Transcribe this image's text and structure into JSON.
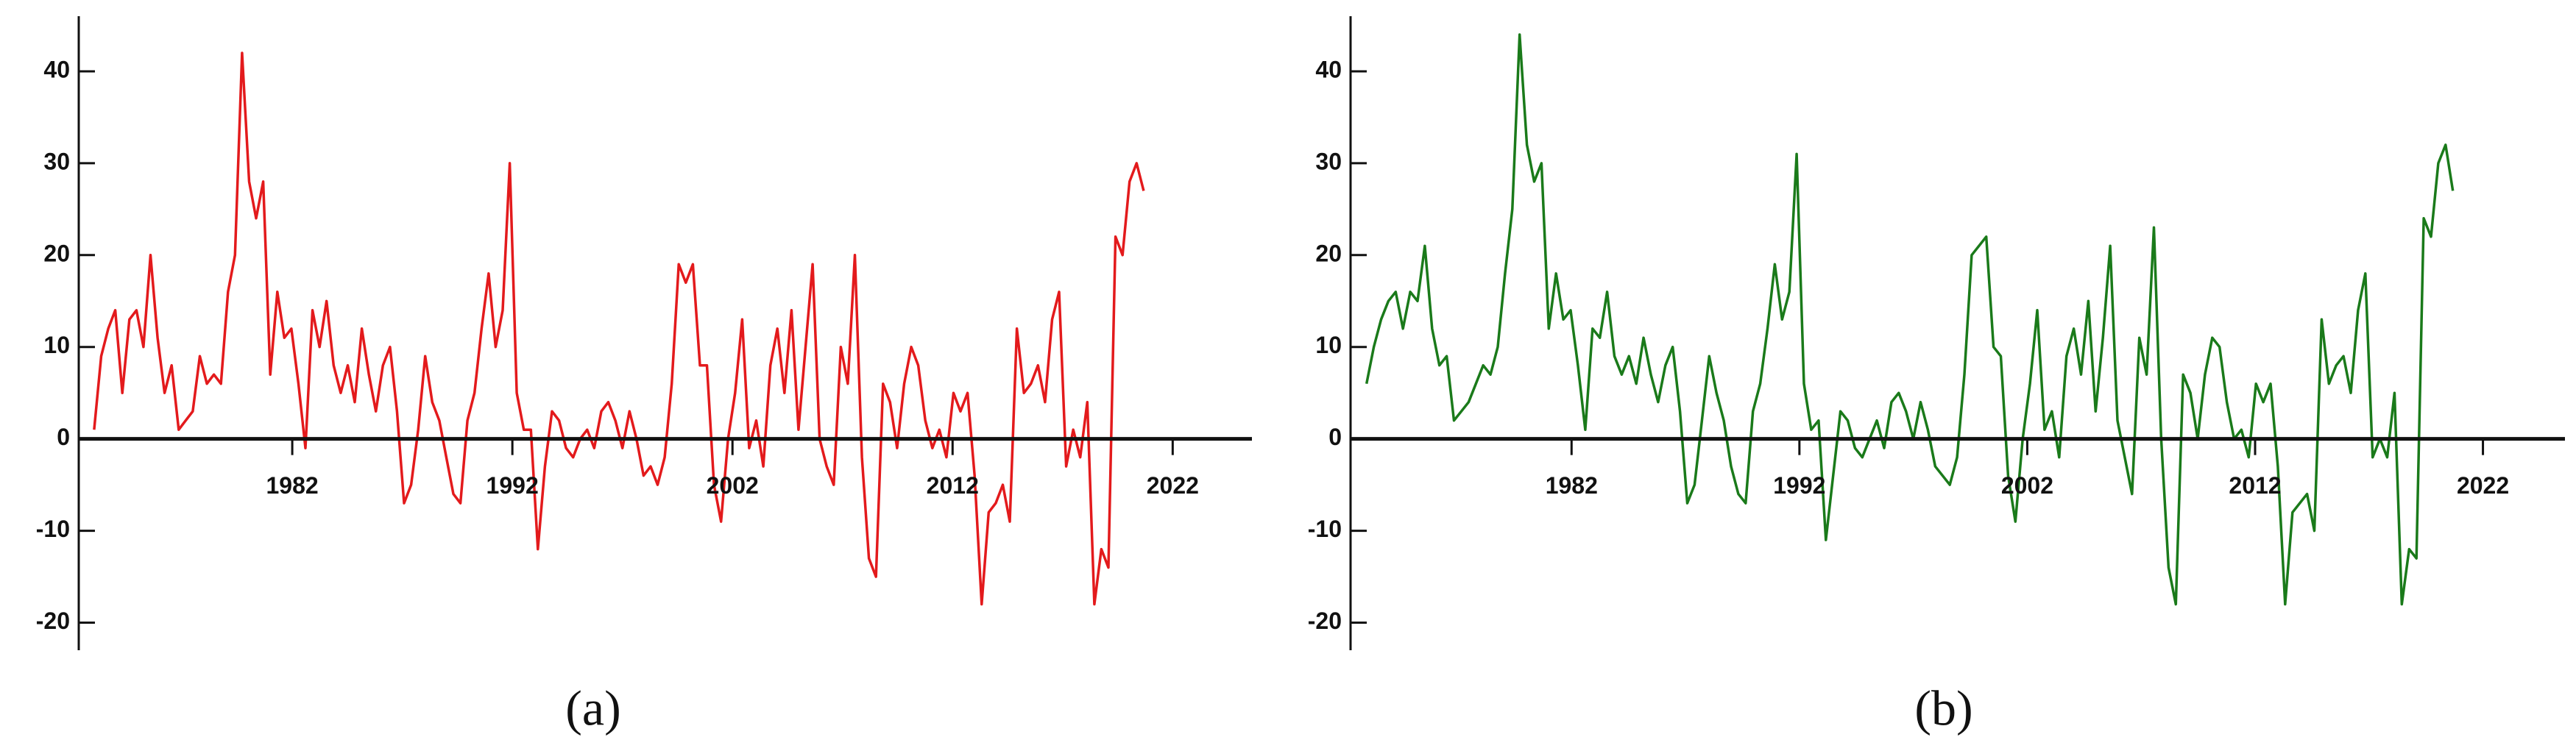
{
  "chart_data": [
    {
      "type": "line",
      "caption": "(a)",
      "color": "#e31a1c",
      "xlim": [
        1972.3,
        2025.6
      ],
      "xticks": [
        1982,
        1992,
        2002,
        2012,
        2022
      ],
      "ylim": [
        -23,
        46
      ],
      "yticks": [
        -20,
        -10,
        0,
        10,
        20,
        30,
        40
      ],
      "x": [
        1973,
        1973.32,
        1973.64,
        1973.96,
        1974.28,
        1974.6,
        1974.92,
        1975.24,
        1975.56,
        1975.88,
        1976.2,
        1976.52,
        1976.84,
        1977.16,
        1977.48,
        1977.8,
        1978.12,
        1978.44,
        1978.76,
        1979.08,
        1979.4,
        1979.72,
        1980.04,
        1980.36,
        1980.68,
        1981,
        1981.32,
        1981.64,
        1981.96,
        1982.28,
        1982.6,
        1982.92,
        1983.24,
        1983.56,
        1983.88,
        1984.2,
        1984.52,
        1984.84,
        1985.16,
        1985.48,
        1985.8,
        1986.12,
        1986.44,
        1986.76,
        1987.08,
        1987.4,
        1987.72,
        1988.04,
        1988.36,
        1988.68,
        1989,
        1989.32,
        1989.64,
        1989.96,
        1990.28,
        1990.6,
        1990.92,
        1991.24,
        1991.56,
        1991.88,
        1992.2,
        1992.52,
        1992.84,
        1993.16,
        1993.48,
        1993.8,
        1994.12,
        1994.44,
        1994.76,
        1995.08,
        1995.4,
        1995.72,
        1996.04,
        1996.36,
        1996.68,
        1997,
        1997.32,
        1997.64,
        1997.96,
        1998.28,
        1998.6,
        1998.92,
        1999.24,
        1999.56,
        1999.88,
        2000.2,
        2000.52,
        2000.84,
        2001.16,
        2001.48,
        2001.8,
        2002.12,
        2002.44,
        2002.76,
        2003.08,
        2003.4,
        2003.72,
        2004.04,
        2004.36,
        2004.68,
        2005,
        2005.32,
        2005.64,
        2005.96,
        2006.28,
        2006.6,
        2006.92,
        2007.24,
        2007.56,
        2007.88,
        2008.2,
        2008.52,
        2008.84,
        2009.16,
        2009.48,
        2009.8,
        2010.12,
        2010.44,
        2010.76,
        2011.08,
        2011.4,
        2011.72,
        2012.04,
        2012.36,
        2012.68,
        2013,
        2013.32,
        2013.64,
        2013.96,
        2014.28,
        2014.6,
        2014.92,
        2015.24,
        2015.56,
        2015.88,
        2016.2,
        2016.52,
        2016.84,
        2017.16,
        2017.48,
        2017.8,
        2018.12,
        2018.44,
        2018.76,
        2019.08,
        2019.4,
        2019.72,
        2020.04,
        2020.36,
        2020.68
      ],
      "values": [
        1,
        9,
        12,
        14,
        5,
        13,
        14,
        10,
        20,
        11,
        5,
        8,
        1,
        2,
        3,
        9,
        6,
        7,
        6,
        16,
        20,
        42,
        28,
        24,
        28,
        7,
        16,
        11,
        12,
        6,
        -1,
        14,
        10,
        15,
        8,
        5,
        8,
        4,
        12,
        7,
        3,
        8,
        10,
        3,
        -7,
        -5,
        1,
        9,
        4,
        2,
        -2,
        -6,
        -7,
        2,
        5,
        12,
        18,
        10,
        14,
        30,
        5,
        1,
        1,
        -12,
        -3,
        3,
        2,
        -1,
        -2,
        0,
        1,
        -1,
        3,
        4,
        2,
        -1,
        3,
        0,
        -4,
        -3,
        -5,
        -2,
        6,
        19,
        17,
        19,
        8,
        8,
        -5,
        -9,
        0,
        5,
        13,
        -1,
        2,
        -3,
        8,
        12,
        5,
        14,
        1,
        10,
        19,
        0,
        -3,
        -5,
        10,
        6,
        20,
        -2,
        -13,
        -15,
        6,
        4,
        -1,
        6,
        10,
        8,
        2,
        -1,
        1,
        -2,
        5,
        3,
        5,
        -4,
        -18,
        -8,
        -7,
        -5,
        -9,
        12,
        5,
        6,
        8,
        4,
        13,
        16,
        -3,
        1,
        -2,
        4,
        -18,
        -12,
        -14,
        22,
        20,
        28,
        30,
        27
      ]
    },
    {
      "type": "line",
      "caption": "(b)",
      "color": "#1a7a1a",
      "xlim": [
        1972.3,
        2025.6
      ],
      "xticks": [
        1982,
        1992,
        2002,
        2012,
        2022
      ],
      "ylim": [
        -23,
        46
      ],
      "yticks": [
        -20,
        -10,
        0,
        10,
        20,
        30,
        40
      ],
      "x": [
        1973,
        1973.32,
        1973.64,
        1973.96,
        1974.28,
        1974.6,
        1974.92,
        1975.24,
        1975.56,
        1975.88,
        1976.2,
        1976.52,
        1976.84,
        1977.16,
        1977.48,
        1977.8,
        1978.12,
        1978.44,
        1978.76,
        1979.08,
        1979.4,
        1979.72,
        1980.04,
        1980.36,
        1980.68,
        1981,
        1981.32,
        1981.64,
        1981.96,
        1982.28,
        1982.6,
        1982.92,
        1983.24,
        1983.56,
        1983.88,
        1984.2,
        1984.52,
        1984.84,
        1985.16,
        1985.48,
        1985.8,
        1986.12,
        1986.44,
        1986.76,
        1987.08,
        1987.4,
        1987.72,
        1988.04,
        1988.36,
        1988.68,
        1989,
        1989.32,
        1989.64,
        1989.96,
        1990.28,
        1990.6,
        1990.92,
        1991.24,
        1991.56,
        1991.88,
        1992.2,
        1992.52,
        1992.84,
        1993.16,
        1993.48,
        1993.8,
        1994.12,
        1994.44,
        1994.76,
        1995.08,
        1995.4,
        1995.72,
        1996.04,
        1996.36,
        1996.68,
        1997,
        1997.32,
        1997.64,
        1997.96,
        1998.28,
        1998.6,
        1998.92,
        1999.24,
        1999.56,
        1999.88,
        2000.2,
        2000.52,
        2000.84,
        2001.16,
        2001.48,
        2001.8,
        2002.12,
        2002.44,
        2002.76,
        2003.08,
        2003.4,
        2003.72,
        2004.04,
        2004.36,
        2004.68,
        2005,
        2005.32,
        2005.64,
        2005.96,
        2006.28,
        2006.6,
        2006.92,
        2007.24,
        2007.56,
        2007.88,
        2008.2,
        2008.52,
        2008.84,
        2009.16,
        2009.48,
        2009.8,
        2010.12,
        2010.44,
        2010.76,
        2011.08,
        2011.4,
        2011.72,
        2012.04,
        2012.36,
        2012.68,
        2013,
        2013.32,
        2013.64,
        2013.96,
        2014.28,
        2014.6,
        2014.92,
        2015.24,
        2015.56,
        2015.88,
        2016.2,
        2016.52,
        2016.84,
        2017.16,
        2017.48,
        2017.8,
        2018.12,
        2018.44,
        2018.76,
        2019.08,
        2019.4,
        2019.72,
        2020.04,
        2020.36,
        2020.68
      ],
      "values": [
        6,
        10,
        13,
        15,
        16,
        12,
        16,
        15,
        21,
        12,
        8,
        9,
        2,
        3,
        4,
        6,
        8,
        7,
        10,
        18,
        25,
        44,
        32,
        28,
        30,
        12,
        18,
        13,
        14,
        8,
        1,
        12,
        11,
        16,
        9,
        7,
        9,
        6,
        11,
        7,
        4,
        8,
        10,
        3,
        -7,
        -5,
        2,
        9,
        5,
        2,
        -3,
        -6,
        -7,
        3,
        6,
        12,
        19,
        13,
        16,
        31,
        6,
        1,
        2,
        -11,
        -4,
        3,
        2,
        -1,
        -2,
        0,
        2,
        -1,
        4,
        5,
        3,
        0,
        4,
        1,
        -3,
        -4,
        -5,
        -2,
        7,
        20,
        21,
        22,
        10,
        9,
        -4,
        -9,
        0,
        6,
        14,
        1,
        3,
        -2,
        9,
        12,
        7,
        15,
        3,
        11,
        21,
        2,
        -2,
        -6,
        11,
        7,
        23,
        0,
        -14,
        -18,
        7,
        5,
        0,
        7,
        11,
        10,
        4,
        0,
        1,
        -2,
        6,
        4,
        6,
        -3,
        -18,
        -8,
        -7,
        -6,
        -10,
        13,
        6,
        8,
        9,
        5,
        14,
        18,
        -2,
        0,
        -2,
        5,
        -18,
        -12,
        -13,
        24,
        22,
        30,
        32,
        27
      ]
    }
  ]
}
